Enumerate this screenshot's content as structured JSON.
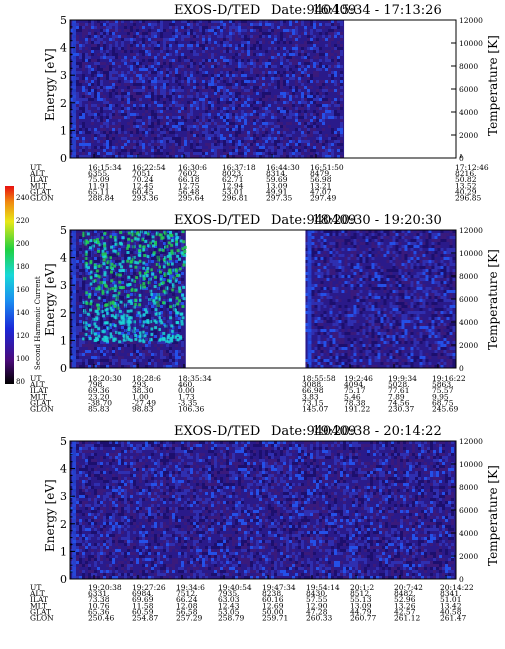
{
  "colors": {
    "background": "#2a1a8a",
    "noise_a": "#2f2fb0",
    "noise_b": "#3a1a7c",
    "noise_c": "#1c0f6e",
    "cyan": "#1ad8d8",
    "green": "#22d050",
    "blue_bright": "#2450e8",
    "temp_line": "#4a0a8a"
  },
  "colorbar": {
    "label": "Second Harmonic Current",
    "ticks": [
      "240",
      "220",
      "200",
      "180",
      "160",
      "140",
      "120",
      "100",
      "80"
    ]
  },
  "chart_data": [
    {
      "type": "heatmap",
      "title": "EXOS-D/TED",
      "date_label": "Date:940409",
      "time_range": "16:15:34 - 17:13:26",
      "ylabel": "Energy [eV]",
      "ylabel_right": "Temperature [K]",
      "ylim": [
        0,
        5
      ],
      "ylim_right": [
        0,
        12000
      ],
      "yticks": [
        "0",
        "1",
        "2",
        "3",
        "4",
        "5"
      ],
      "yticks_right": [
        "0",
        "2000",
        "4000",
        "6000",
        "8000",
        "10000",
        "12000"
      ],
      "data_coverage": [
        [
          0.0,
          0.71
        ]
      ],
      "features": "low-level noise across all energies, dark blue with brighter speckles near start",
      "table": {
        "labels": [
          "UT",
          "ALT",
          "ILAT",
          "MLT",
          "GLAT",
          "GLON"
        ],
        "columns": [
          [
            "16:15:34",
            "6355.",
            "75.09",
            "11.91",
            "65.11",
            "288.84"
          ],
          [
            "16:22:54",
            "7051.",
            "70.24",
            "12.45",
            "60.45",
            "293.36"
          ],
          [
            "16:30:6",
            "7602.",
            "66.18",
            "12.75",
            "56.48",
            "295.64"
          ],
          [
            "16:37:18",
            "8023.",
            "62.71",
            "12.94",
            "53.01",
            "296.81"
          ],
          [
            "16:44:30",
            "8314.",
            "59.69",
            "13.09",
            "49.91",
            "297.35"
          ],
          [
            "16:51:50",
            "8479.",
            "56.98",
            "13.21",
            "47.07",
            "297.49"
          ],
          [
            "17:12:46",
            "8216.",
            "50.82",
            "13.52",
            "40.29",
            "296.85"
          ]
        ]
      }
    },
    {
      "type": "heatmap",
      "title": "EXOS-D/TED",
      "date_label": "Date:940409",
      "time_range": "18:20:30 - 19:20:30",
      "ylabel": "Energy [eV]",
      "ylabel_right": "Temperature [K]",
      "ylim": [
        0,
        5
      ],
      "ylim_right": [
        0,
        12000
      ],
      "yticks": [
        "0",
        "1",
        "2",
        "3",
        "4",
        "5"
      ],
      "yticks_right": [
        "0",
        "2000",
        "4000",
        "6000",
        "8000",
        "10000",
        "12000"
      ],
      "data_coverage": [
        [
          0.0,
          0.3
        ],
        [
          0.61,
          1.0
        ]
      ],
      "features": "strong cyan/green emission bands between 1 and 5 eV in first segment; noise only in second segment",
      "table": {
        "labels": [
          "UT",
          "ALT",
          "ILAT",
          "MLT",
          "GLAT",
          "GLON"
        ],
        "columns": [
          [
            "18:20:30",
            "798.",
            "69.36",
            "23.20",
            "-38.70",
            "85.83"
          ],
          [
            "18:28:6",
            "293.",
            "38.30",
            "1.00",
            "-27.49",
            "98.83"
          ],
          [
            "18:35:34",
            "460.",
            "0.00",
            "1.73",
            "-3.35",
            "106.36"
          ],
          [
            "18:55:58",
            "3088.",
            "66.98",
            "3.83",
            "73.15",
            "145.07"
          ],
          [
            "19:2:46",
            "4094.",
            "75.17",
            "5.46",
            "78.38",
            "191.22"
          ],
          [
            "19:9:34",
            "5028.",
            "77.61",
            "7.89",
            "74.56",
            "230.37"
          ],
          [
            "19:16:22",
            "5863.",
            "75.57",
            "9.95",
            "68.75",
            "245.69"
          ]
        ]
      }
    },
    {
      "type": "heatmap",
      "title": "EXOS-D/TED",
      "date_label": "Date:940409",
      "time_range": "19:20:38 - 20:14:22",
      "ylabel": "Energy [eV]",
      "ylabel_right": "Temperature [K]",
      "ylim": [
        0,
        5
      ],
      "ylim_right": [
        0,
        12000
      ],
      "yticks": [
        "0",
        "1",
        "2",
        "3",
        "4",
        "5"
      ],
      "yticks_right": [
        "0",
        "2000",
        "4000",
        "6000",
        "8000",
        "10000",
        "12000"
      ],
      "data_coverage": [
        [
          0.0,
          1.0
        ]
      ],
      "features": "low-level noise across all energies",
      "table": {
        "labels": [
          "UT",
          "ALT",
          "ILAT",
          "MLT",
          "GLAT",
          "GLON"
        ],
        "columns": [
          [
            "19:20:38",
            "6331.",
            "73.38",
            "10.76",
            "65.36",
            "250.46"
          ],
          [
            "19:27:26",
            "6984.",
            "69.69",
            "11.58",
            "60.59",
            "254.87"
          ],
          [
            "19:34:6",
            "7512.",
            "66.24",
            "12.08",
            "56.58",
            "257.29"
          ],
          [
            "19:40:54",
            "7935.",
            "63.03",
            "12.43",
            "53.05",
            "258.79"
          ],
          [
            "19:47:34",
            "8238.",
            "60.16",
            "12.69",
            "50.00",
            "259.71"
          ],
          [
            "19:54:14",
            "8430.",
            "57.55",
            "12.90",
            "47.28",
            "260.33"
          ],
          [
            "20:1:2",
            "8512.",
            "55.13",
            "13.09",
            "44.79",
            "260.77"
          ],
          [
            "20:7:42",
            "8482.",
            "52.96",
            "13.26",
            "42.57",
            "261.12"
          ],
          [
            "20:14:22",
            "8341.",
            "51.01",
            "13.42",
            "40.58",
            "261.47"
          ]
        ]
      }
    }
  ]
}
